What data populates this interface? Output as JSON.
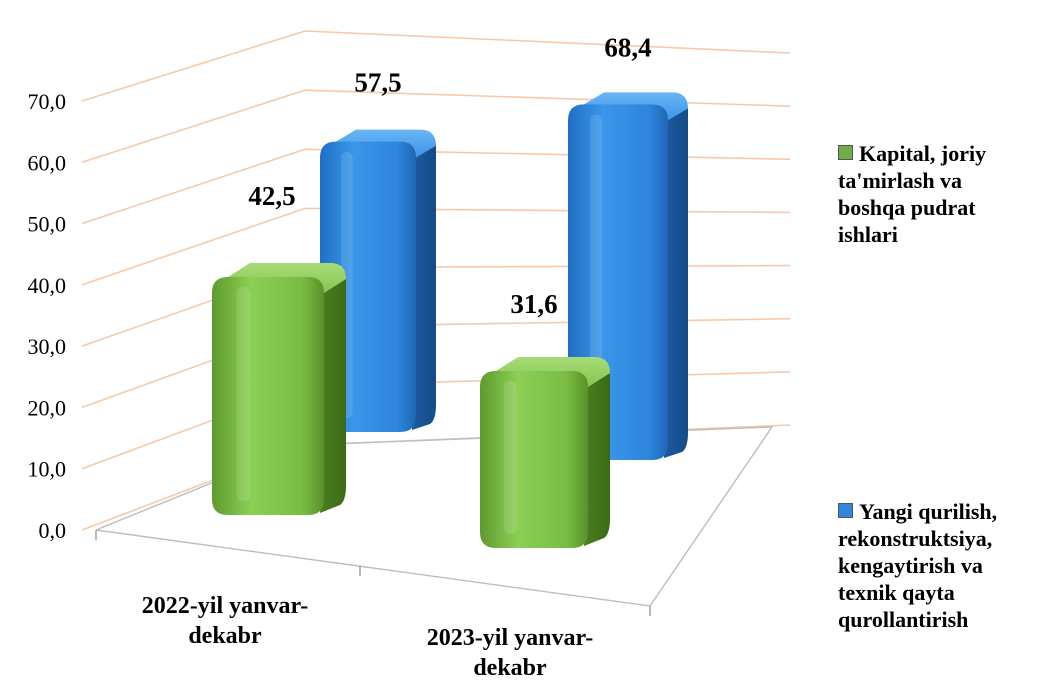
{
  "chart_data": {
    "type": "bar",
    "title": "",
    "xlabel": "",
    "ylabel": "",
    "ylim": [
      0,
      70
    ],
    "yticks": [
      "0,0",
      "10,0",
      "20,0",
      "30,0",
      "40,0",
      "50,0",
      "60,0",
      "70,0"
    ],
    "grid": true,
    "legend_position": "right",
    "categories": [
      "2022-yil yanvar-\ndekabr",
      "2023-yil yanvar-\ndekabr"
    ],
    "series": [
      {
        "name": "Kapital, joriy\nta'mirlash va\nboshqa pudrat\nishlari",
        "color": "#70ad47",
        "values": [
          42.5,
          31.6
        ],
        "labels": [
          "42,5",
          "31,6"
        ]
      },
      {
        "name": "Yangi qurilish,\nrekonstruktsiya,\nkengaytirish va\ntexnik qayta\nqurollantirish",
        "color": "#2e86de",
        "values": [
          57.5,
          68.4
        ],
        "labels": [
          "57,5",
          "68,4"
        ]
      }
    ]
  }
}
